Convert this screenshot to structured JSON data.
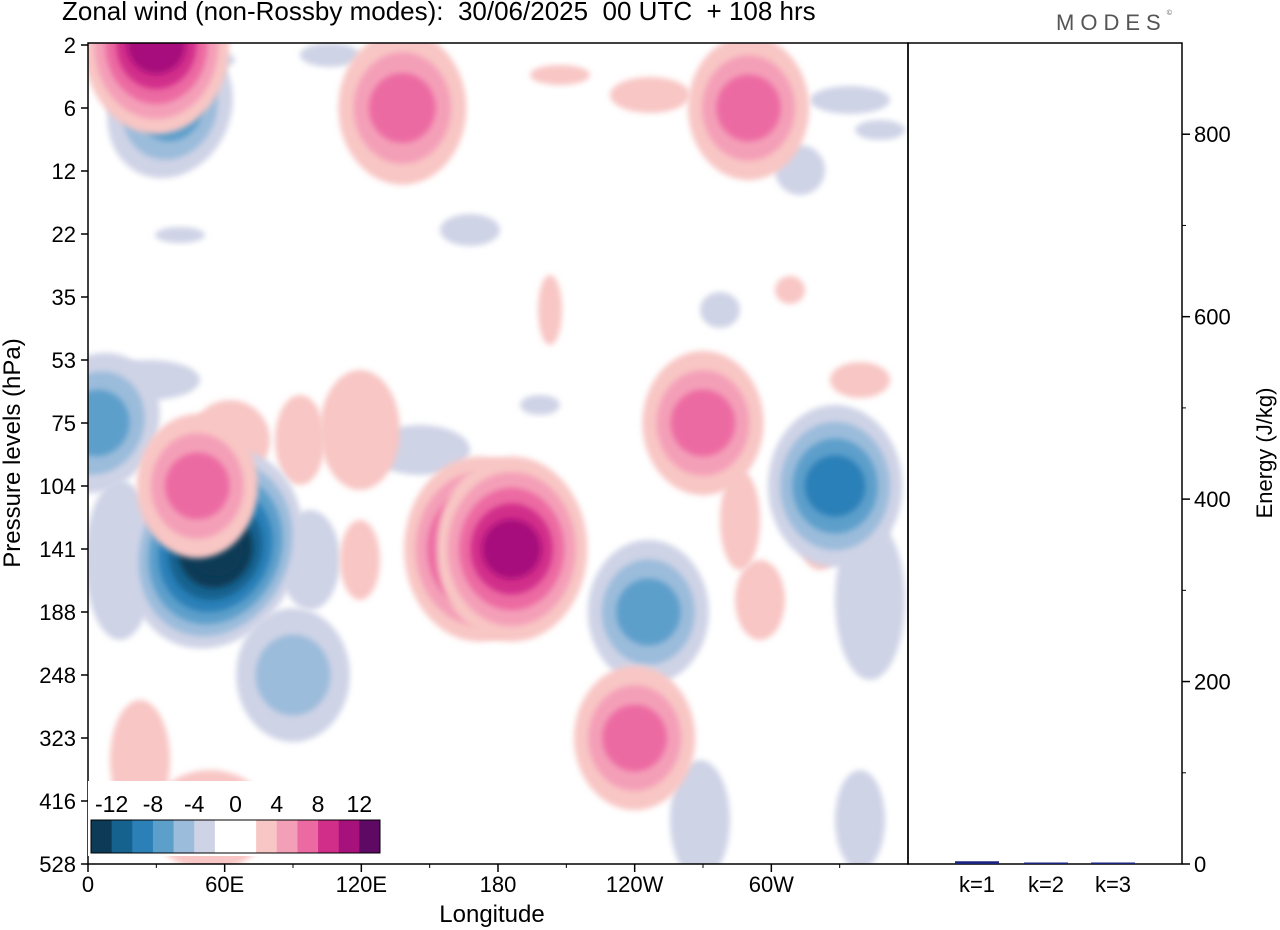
{
  "title": "Zonal wind (non-Rossby modes):  30/06/2025  00 UTC  + 108 hrs",
  "logo": "MODES",
  "chart_data": [
    {
      "type": "heatmap",
      "variable": "Zonal wind (non-Rossby modes)",
      "xlabel": "Longitude",
      "ylabel": "Pressure levels (hPa)",
      "x_ticks": [
        "0",
        "60E",
        "120E",
        "180",
        "120W",
        "60W"
      ],
      "x_tick_degrees": [
        0,
        60,
        120,
        180,
        240,
        300
      ],
      "xlim": [
        0,
        360
      ],
      "y_ticks": [
        "2",
        "6",
        "12",
        "22",
        "35",
        "53",
        "75",
        "104",
        "141",
        "188",
        "248",
        "323",
        "416",
        "528"
      ],
      "colorbar": {
        "labels": [
          "-12",
          "-8",
          "-4",
          "0",
          "4",
          "8",
          "12"
        ],
        "colors": [
          "#0d3b57",
          "#15628f",
          "#2c80b8",
          "#5d9fcb",
          "#9bbcdb",
          "#cfd3e6",
          "#ffffff",
          "#ffffff",
          "#f8c6c4",
          "#f49fb8",
          "#ec6aa2",
          "#d12e8a",
          "#a7117c",
          "#5e0a64"
        ]
      },
      "features": [
        {
          "sign": "negative",
          "max_abs": 14,
          "lon": 56,
          "level": "141"
        },
        {
          "sign": "negative",
          "max_abs": 6,
          "lon": 4,
          "level": "75"
        },
        {
          "sign": "negative",
          "max_abs": 8,
          "lon": 328,
          "level": "104"
        },
        {
          "sign": "negative",
          "max_abs": 6,
          "lon": 246,
          "level": "188"
        },
        {
          "sign": "negative",
          "max_abs": 6,
          "lon": 36,
          "level": "6"
        },
        {
          "sign": "negative",
          "max_abs": 5,
          "lon": 90,
          "level": "248"
        },
        {
          "sign": "positive",
          "max_abs": 11,
          "lon": 172,
          "level": "141"
        },
        {
          "sign": "positive",
          "max_abs": 11,
          "lon": 186,
          "level": "141"
        },
        {
          "sign": "positive",
          "max_abs": 6,
          "lon": 270,
          "level": "75"
        },
        {
          "sign": "positive",
          "max_abs": 6,
          "lon": 240,
          "level": "323"
        },
        {
          "sign": "positive",
          "max_abs": 6,
          "lon": 48,
          "level": "104"
        },
        {
          "sign": "positive",
          "max_abs": 10,
          "lon": 30,
          "level": "2"
        },
        {
          "sign": "positive",
          "max_abs": 7,
          "lon": 138,
          "level": "6"
        },
        {
          "sign": "positive",
          "max_abs": 6,
          "lon": 290,
          "level": "6"
        }
      ]
    },
    {
      "type": "bar",
      "ylabel": "Energy (J/kg)",
      "categories": [
        "k=1",
        "k=2",
        "k=3"
      ],
      "values": [
        3,
        1.5,
        1
      ],
      "ylim": [
        0,
        900
      ],
      "y_ticks": [
        "0",
        "200",
        "400",
        "600",
        "800"
      ],
      "bar_color": "#1a237e"
    }
  ]
}
